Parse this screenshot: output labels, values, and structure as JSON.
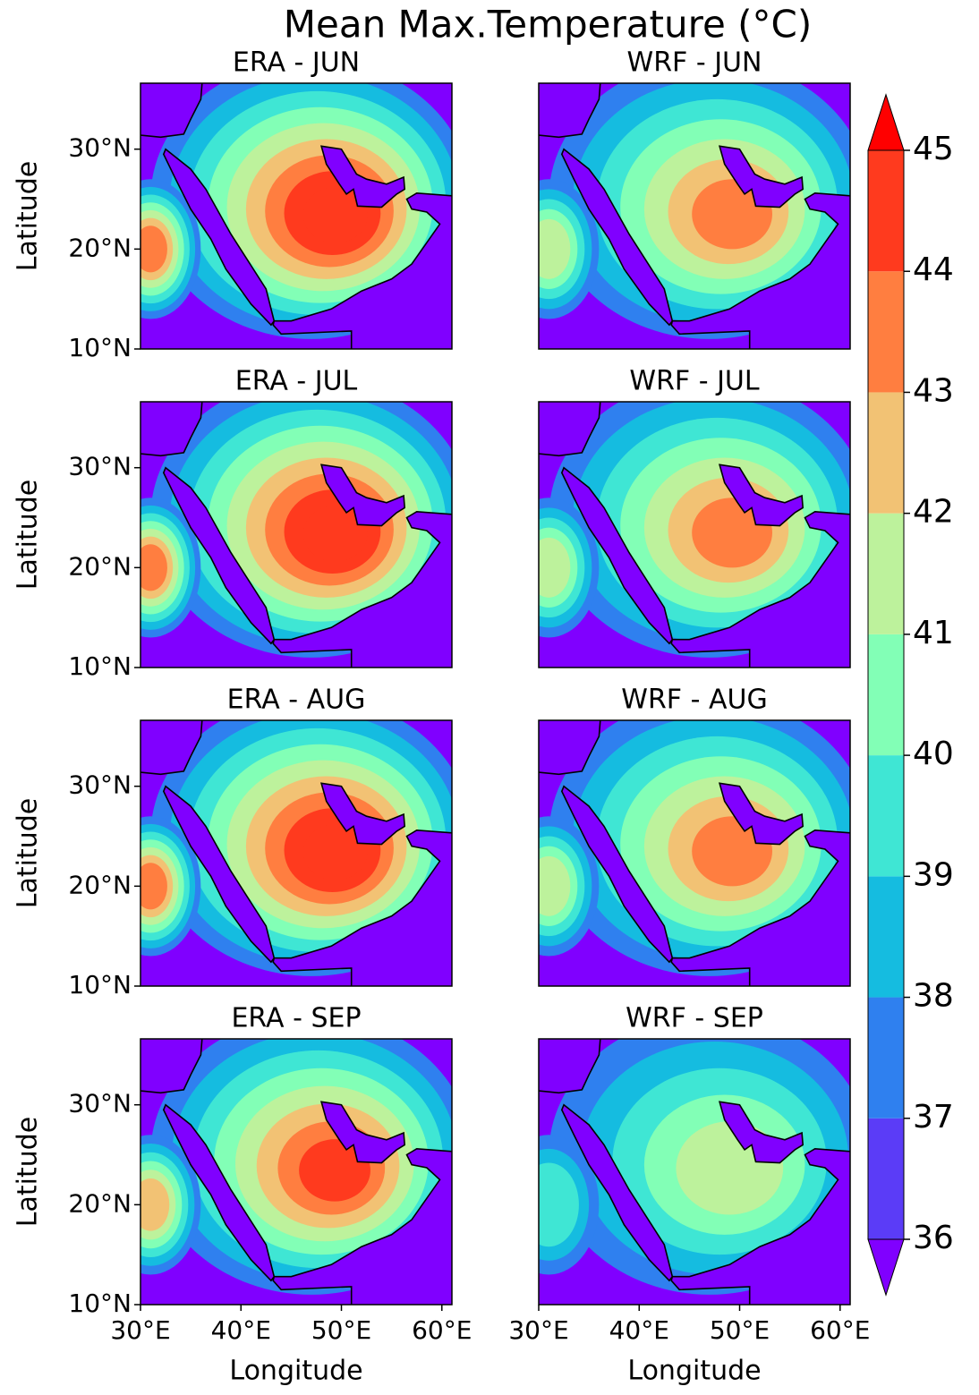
{
  "title": "Mean Max.Temperature (°C)",
  "chart_data": [
    {
      "type": "contour",
      "title": "ERA - JUN",
      "ylabel": "Latitude",
      "xlim": [
        30,
        61
      ],
      "ylim": [
        10,
        36.6
      ],
      "yticks": [
        {
          "value": 10,
          "label": "10°N"
        },
        {
          "value": 20,
          "label": "20°N"
        },
        {
          "value": 30,
          "label": "30°N"
        }
      ]
    },
    {
      "type": "contour",
      "title": "WRF - JUN",
      "xlim": [
        30,
        61
      ],
      "ylim": [
        10,
        36.6
      ]
    },
    {
      "type": "contour",
      "title": "ERA - JUL",
      "ylabel": "Latitude",
      "xlim": [
        30,
        61
      ],
      "ylim": [
        10,
        36.6
      ],
      "yticks": [
        {
          "value": 10,
          "label": "10°N"
        },
        {
          "value": 20,
          "label": "20°N"
        },
        {
          "value": 30,
          "label": "30°N"
        }
      ]
    },
    {
      "type": "contour",
      "title": "WRF - JUL",
      "xlim": [
        30,
        61
      ],
      "ylim": [
        10,
        36.6
      ]
    },
    {
      "type": "contour",
      "title": "ERA - AUG",
      "ylabel": "Latitude",
      "xlim": [
        30,
        61
      ],
      "ylim": [
        10,
        36.6
      ],
      "yticks": [
        {
          "value": 10,
          "label": "10°N"
        },
        {
          "value": 20,
          "label": "20°N"
        },
        {
          "value": 30,
          "label": "30°N"
        }
      ]
    },
    {
      "type": "contour",
      "title": "WRF - AUG",
      "xlim": [
        30,
        61
      ],
      "ylim": [
        10,
        36.6
      ]
    },
    {
      "type": "contour",
      "title": "ERA - SEP",
      "ylabel": "Latitude",
      "xlabel": "Longitude",
      "xlim": [
        30,
        61
      ],
      "ylim": [
        10,
        36.6
      ],
      "yticks": [
        {
          "value": 10,
          "label": "10°N"
        },
        {
          "value": 20,
          "label": "20°N"
        },
        {
          "value": 30,
          "label": "30°N"
        }
      ],
      "xticks": [
        {
          "value": 30,
          "label": "30°E"
        },
        {
          "value": 40,
          "label": "40°E"
        },
        {
          "value": 50,
          "label": "50°E"
        },
        {
          "value": 60,
          "label": "60°E"
        }
      ]
    },
    {
      "type": "contour",
      "title": "WRF - SEP",
      "xlabel": "Longitude",
      "xlim": [
        30,
        61
      ],
      "ylim": [
        10,
        36.6
      ],
      "xticks": [
        {
          "value": 30,
          "label": "30°E"
        },
        {
          "value": 40,
          "label": "40°E"
        },
        {
          "value": 50,
          "label": "50°E"
        },
        {
          "value": 60,
          "label": "60°E"
        }
      ]
    }
  ],
  "colorbar": {
    "levels": [
      36,
      37,
      38,
      39,
      40,
      41,
      42,
      43,
      44,
      45
    ],
    "extend": "both",
    "colors": [
      "#8000ff",
      "#5b3cf7",
      "#2f80ef",
      "#15bce0",
      "#3fe6d4",
      "#82ffb6",
      "#bdf29c",
      "#f2c274",
      "#ff7e40",
      "#ff3a1e",
      "#ff0000"
    ]
  }
}
